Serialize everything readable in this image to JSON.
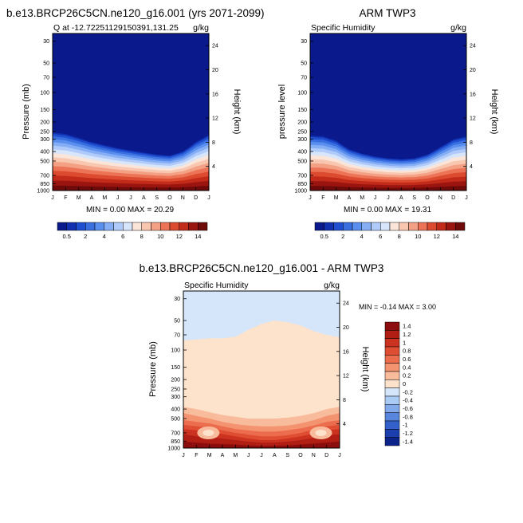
{
  "chart_data": [
    {
      "type": "heatmap",
      "title": "b.e13.BRCP26C5CN.ne120_g16.001 (yrs 2071-2099)",
      "left_label": "Q at -12.72251129150391,131.25",
      "right_label": "g/kg",
      "ylabel": "Pressure (mb)",
      "ylabel_right": "Height (km)",
      "x_ticks": [
        "J",
        "F",
        "M",
        "A",
        "M",
        "J",
        "J",
        "A",
        "S",
        "O",
        "N",
        "D",
        "J"
      ],
      "y_ticks": [
        "30",
        "50",
        "70",
        "100",
        "150",
        "200",
        "250",
        "300",
        "400",
        "500",
        "700",
        "850",
        "1000"
      ],
      "y_ticks_right": [
        "24",
        "20",
        "16",
        "12",
        "8",
        "4"
      ],
      "ylim": [
        1000,
        25
      ],
      "stat_text": "MIN =   0.00 MAX =  20.29",
      "min": 0.0,
      "max": 20.29,
      "moisture_top_pressure": [
        255,
        265,
        290,
        320,
        345,
        370,
        390,
        410,
        430,
        440,
        400,
        320,
        270
      ],
      "colorbar_labels": [
        "0.5",
        "2",
        "4",
        "6",
        "8",
        "10",
        "12",
        "14"
      ]
    },
    {
      "type": "heatmap",
      "title": "ARM TWP3",
      "left_label": "Specific Humidity",
      "right_label": "g/kg",
      "ylabel": "pressure level",
      "ylabel_right": "Height (km)",
      "x_ticks": [
        "J",
        "F",
        "M",
        "A",
        "M",
        "J",
        "J",
        "A",
        "S",
        "O",
        "N",
        "D",
        "J"
      ],
      "y_ticks": [
        "30",
        "50",
        "70",
        "100",
        "150",
        "200",
        "250",
        "300",
        "400",
        "500",
        "700",
        "850",
        "1000"
      ],
      "y_ticks_right": [
        "24",
        "20",
        "16",
        "12",
        "8",
        "4"
      ],
      "ylim": [
        1000,
        25
      ],
      "stat_text": "MIN =   0.00 MAX =  19.31",
      "min": 0.0,
      "max": 19.31,
      "moisture_top_pressure": [
        275,
        280,
        310,
        380,
        420,
        450,
        470,
        480,
        470,
        430,
        360,
        300,
        280
      ],
      "colorbar_labels": [
        "0.5",
        "2",
        "4",
        "6",
        "8",
        "10",
        "12",
        "14"
      ]
    },
    {
      "type": "heatmap",
      "title": "b.e13.BRCP26C5CN.ne120_g16.001 - ARM TWP3",
      "left_label": "Specific Humidity",
      "right_label": "g/kg",
      "ylabel": "Pressure (mb)",
      "ylabel_right": "Height (km)",
      "x_ticks": [
        "J",
        "F",
        "M",
        "A",
        "M",
        "J",
        "J",
        "A",
        "S",
        "O",
        "N",
        "D",
        "J"
      ],
      "y_ticks": [
        "30",
        "50",
        "70",
        "100",
        "150",
        "200",
        "250",
        "300",
        "400",
        "500",
        "700",
        "850",
        "1000"
      ],
      "y_ticks_right": [
        "24",
        "20",
        "16",
        "12",
        "8",
        "4"
      ],
      "ylim": [
        1000,
        25
      ],
      "stat_text": "MIN = -0.14 MAX =   3.00",
      "min": -0.14,
      "max": 3.0,
      "colorbar_labels": [
        "1.4",
        "1.2",
        "1",
        "0.8",
        "0.6",
        "0.4",
        "0.2",
        "0",
        "-0.2",
        "-0.4",
        "-0.6",
        "-0.8",
        "-1",
        "-1.2",
        "-1.4"
      ]
    }
  ],
  "colors": {
    "abs_scale": [
      "#0a1a8c",
      "#1030b0",
      "#1f4fd0",
      "#3a6fe0",
      "#5b8fef",
      "#86aef5",
      "#b0cbf9",
      "#d8e6fb",
      "#fbe4d8",
      "#f9c6b0",
      "#f4a085",
      "#ec7355",
      "#dc4a30",
      "#c22a1a",
      "#9a1410",
      "#6e0a0a"
    ],
    "diff_scale": [
      "#8b0d0d",
      "#b01e14",
      "#cc3220",
      "#df4d32",
      "#ec6c4e",
      "#f4936f",
      "#f8bb9c",
      "#fde2cc",
      "#d6e6fa",
      "#aacbf3",
      "#82a9ea",
      "#5885dd",
      "#3461c9",
      "#1b40ad",
      "#0c248a"
    ]
  }
}
